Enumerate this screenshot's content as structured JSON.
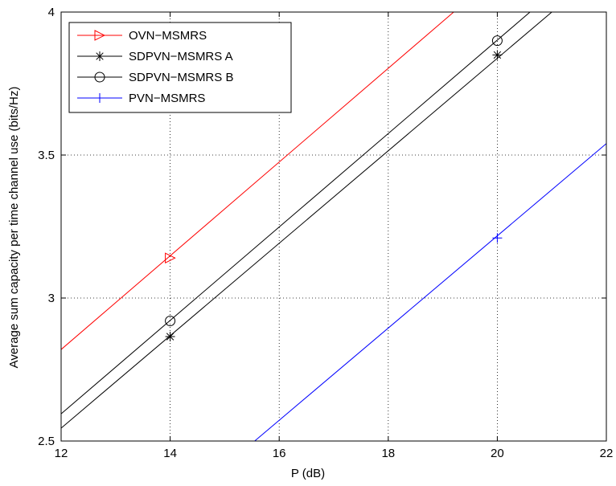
{
  "chart_data": {
    "type": "line",
    "xlabel": "P (dB)",
    "ylabel": "Average sum capacity per time channel use  (bits/Hz)",
    "xlim": [
      12,
      22
    ],
    "ylim": [
      2.5,
      4
    ],
    "xticks": [
      12,
      14,
      16,
      18,
      20,
      22
    ],
    "yticks": [
      2.5,
      3,
      3.5,
      4
    ],
    "xtick_labels": [
      "12",
      "14",
      "16",
      "18",
      "20",
      "22"
    ],
    "ytick_labels": [
      "2.5",
      "3",
      "3.5",
      "4"
    ],
    "grid": true,
    "legend_position": "top-left",
    "series": [
      {
        "name": "OVN−MSMRS",
        "color": "#ff0000",
        "marker": "triangle-right",
        "x": [
          12,
          19.2
        ],
        "y": [
          2.82,
          4.0
        ],
        "marker_x": [
          14
        ],
        "marker_y": [
          3.14
        ]
      },
      {
        "name": "SDPVN−MSMRS A",
        "color": "#000000",
        "marker": "star",
        "x": [
          12,
          21.0
        ],
        "y": [
          2.545,
          4.0
        ],
        "marker_x": [
          14,
          20
        ],
        "marker_y": [
          2.865,
          3.85
        ]
      },
      {
        "name": "SDPVN−MSMRS B",
        "color": "#000000",
        "marker": "circle",
        "x": [
          12,
          20.6
        ],
        "y": [
          2.595,
          4.0
        ],
        "marker_x": [
          14,
          20
        ],
        "marker_y": [
          2.92,
          3.9
        ]
      },
      {
        "name": "PVN−MSMRS",
        "color": "#0000ff",
        "marker": "plus",
        "x": [
          15.55,
          22
        ],
        "y": [
          2.5,
          3.54
        ],
        "marker_x": [
          20
        ],
        "marker_y": [
          3.21
        ]
      }
    ]
  }
}
